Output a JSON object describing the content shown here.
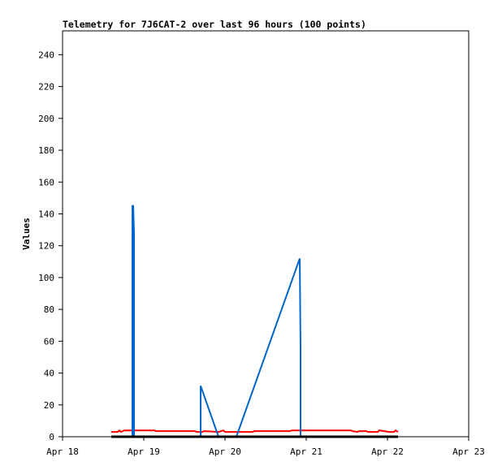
{
  "chart_data": {
    "type": "line",
    "title": "Telemetry for 7J6CAT-2 over last 96 hours (100 points)",
    "xlabel": "",
    "ylabel": "Values",
    "xlim": [
      "Apr 18 00:00",
      "Apr 23 00:00"
    ],
    "ylim": [
      0,
      255
    ],
    "x_ticks": [
      "Apr 18",
      "Apr 19",
      "Apr 20",
      "Apr 21",
      "Apr 22",
      "Apr 23"
    ],
    "y_ticks": [
      0,
      20,
      40,
      60,
      80,
      100,
      120,
      140,
      160,
      180,
      200,
      220,
      240
    ],
    "grid": false,
    "legend": "none",
    "series": [
      {
        "color": "#0066cc",
        "points": [
          [
            "Apr 18 14:24",
            0
          ],
          [
            "Apr 18 20:38",
            0
          ],
          [
            "Apr 18 20:38",
            145
          ],
          [
            "Apr 18 20:53",
            145
          ],
          [
            "Apr 18 21:07",
            128
          ],
          [
            "Apr 18 21:07",
            0
          ],
          [
            "Apr 19 16:48",
            0
          ],
          [
            "Apr 19 16:48",
            32
          ],
          [
            "Apr 19 22:05",
            0
          ],
          [
            "Apr 20 03:22",
            0
          ],
          [
            "Apr 20 22:05",
            112
          ],
          [
            "Apr 20 22:19",
            56
          ],
          [
            "Apr 20 22:19",
            0
          ],
          [
            "Apr 22 03:07",
            0
          ]
        ]
      },
      {
        "color": "#ff0000",
        "points": [
          [
            "Apr 18 14:24",
            3
          ],
          [
            "Apr 18 16:19",
            3
          ],
          [
            "Apr 18 16:48",
            4
          ],
          [
            "Apr 18 17:17",
            3
          ],
          [
            "Apr 18 18:14",
            4
          ],
          [
            "Apr 19 03:07",
            4
          ],
          [
            "Apr 19 03:36",
            3.5
          ],
          [
            "Apr 19 15:07",
            3.5
          ],
          [
            "Apr 19 15:36",
            3
          ],
          [
            "Apr 19 17:17",
            3
          ],
          [
            "Apr 19 17:46",
            3.5
          ],
          [
            "Apr 19 22:05",
            3
          ],
          [
            "Apr 19 23:31",
            4
          ],
          [
            "Apr 20 00:00",
            3
          ],
          [
            "Apr 20 08:10",
            3
          ],
          [
            "Apr 20 08:38",
            3.5
          ],
          [
            "Apr 20 19:12",
            3.5
          ],
          [
            "Apr 20 19:41",
            4
          ],
          [
            "Apr 21 13:12",
            4
          ],
          [
            "Apr 21 13:41",
            3.5
          ],
          [
            "Apr 21 15:07",
            3
          ],
          [
            "Apr 21 15:36",
            3.5
          ],
          [
            "Apr 21 17:46",
            3.5
          ],
          [
            "Apr 21 18:14",
            3
          ],
          [
            "Apr 21 21:07",
            3
          ],
          [
            "Apr 21 21:36",
            4
          ],
          [
            "Apr 22 00:29",
            3
          ],
          [
            "Apr 22 01:55",
            3
          ],
          [
            "Apr 22 02:24",
            4
          ],
          [
            "Apr 22 03:07",
            3
          ]
        ]
      },
      {
        "color": "#000000",
        "points": [
          [
            "Apr 18 14:24",
            0
          ],
          [
            "Apr 22 03:07",
            0
          ]
        ]
      }
    ]
  }
}
